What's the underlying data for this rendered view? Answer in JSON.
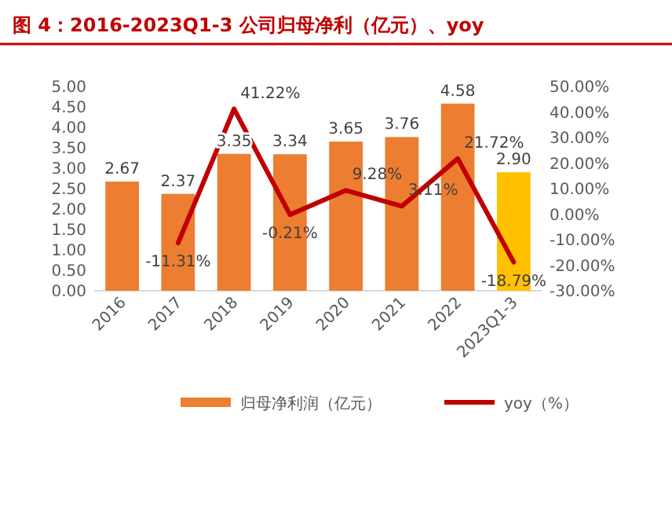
{
  "chart_data": {
    "type": "bar",
    "title": "图 4：2016-2023Q1-3 公司归母净利（亿元）、yoy",
    "categories": [
      "2016",
      "2017",
      "2018",
      "2019",
      "2020",
      "2021",
      "2022",
      "2023Q1-3"
    ],
    "series": [
      {
        "name": "归母净利润（亿元）",
        "color": "#ed7d31",
        "colors": [
          "#ed7d31",
          "#ed7d31",
          "#ed7d31",
          "#ed7d31",
          "#ed7d31",
          "#ed7d31",
          "#ed7d31",
          "#ffc000"
        ],
        "values": [
          2.67,
          2.37,
          3.35,
          3.34,
          3.65,
          3.76,
          4.58,
          2.9
        ],
        "value_labels": [
          "2.67",
          "2.37",
          "3.35",
          "3.34",
          "3.65",
          "3.76",
          "4.58",
          "2.90"
        ]
      },
      {
        "name": "yoy（%）",
        "type": "line",
        "axis": "y2",
        "color": "#c00000",
        "values": [
          null,
          -11.31,
          41.22,
          -0.21,
          9.28,
          3.11,
          21.72,
          -18.79
        ],
        "value_labels": [
          null,
          "-11.31%",
          "41.22%",
          "-0.21%",
          "9.28%",
          "3.11%",
          "21.72%",
          "-18.79%"
        ]
      }
    ],
    "ylim": [
      0,
      5
    ],
    "yticks": [
      {
        "value": 0,
        "label": "0.00"
      },
      {
        "value": 0.5,
        "label": "0.50"
      },
      {
        "value": 1,
        "label": "1.00"
      },
      {
        "value": 1.5,
        "label": "1.50"
      },
      {
        "value": 2,
        "label": "2.00"
      },
      {
        "value": 2.5,
        "label": "2.50"
      },
      {
        "value": 3,
        "label": "3.00"
      },
      {
        "value": 3.5,
        "label": "3.50"
      },
      {
        "value": 4,
        "label": "4.00"
      },
      {
        "value": 4.5,
        "label": "4.50"
      },
      {
        "value": 5,
        "label": "5.00"
      }
    ],
    "y2lim": [
      -30,
      50
    ],
    "y2ticks": [
      {
        "value": -30,
        "label": "-30.00%"
      },
      {
        "value": -20,
        "label": "-20.00%"
      },
      {
        "value": -10,
        "label": "-10.00%"
      },
      {
        "value": 0,
        "label": "0.00%"
      },
      {
        "value": 10,
        "label": "10.00%"
      },
      {
        "value": 20,
        "label": "20.00%"
      },
      {
        "value": 30,
        "label": "30.00%"
      },
      {
        "value": 40,
        "label": "40.00%"
      },
      {
        "value": 50,
        "label": "50.00%"
      }
    ],
    "legend": "bottom"
  }
}
